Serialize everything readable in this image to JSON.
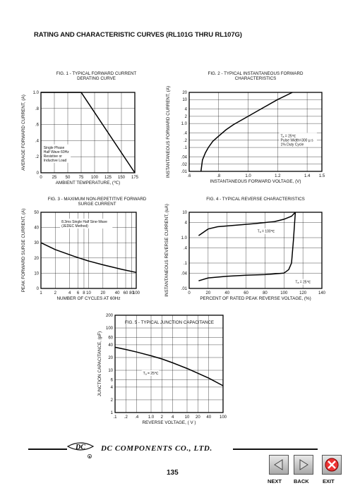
{
  "page_title": "RATING AND CHARACTERISTIC CURVES (RL101G THRU RL107G)",
  "company": "DC COMPONENTS CO.,  LTD.",
  "logo_text": "DC",
  "page_number": "135",
  "nav": {
    "next": "NEXT",
    "back": "BACK",
    "exit": "EXIT"
  },
  "chart_data": [
    {
      "id": "fig1",
      "type": "line",
      "title": [
        "FIG. 1 - TYPICAL FORWARD CURRENT",
        "DERATING CURVE"
      ],
      "xlabel": "AMBIENT TEMPERATURE, (℃)",
      "ylabel": "AVERAGE FORWARD  CURRENT, (A)",
      "xlim": [
        0,
        175
      ],
      "ylim": [
        0,
        1.0
      ],
      "xticks": [
        0,
        25,
        50,
        75,
        100,
        125,
        150,
        175
      ],
      "xtick_labels": [
        "0",
        "25",
        "50",
        "75",
        "100",
        "125",
        "150",
        "175"
      ],
      "yticks": [
        0,
        0.2,
        0.4,
        0.6,
        0.8,
        1.0
      ],
      "ytick_labels": [
        "0",
        ".2",
        ".4",
        ".6",
        ".8",
        "1.0"
      ],
      "grid": true,
      "series": [
        {
          "x": [
            0,
            75,
            175
          ],
          "y": [
            1.0,
            1.0,
            0
          ]
        }
      ],
      "annotations": [
        {
          "lines": [
            "Single Phase",
            "Half Wave 60Hz",
            "Resistive or",
            "Inductive Load"
          ],
          "x": 5,
          "y": 0.3
        }
      ]
    },
    {
      "id": "fig2",
      "type": "line",
      "title": [
        "FIG. 2 - TYPICAL INSTANTANEOUS FORWARD",
        "CHARACTERISTICS"
      ],
      "xlabel": "INSTANTANEOUS FORWARD VOLTAGE, (V)",
      "ylabel": "INSTANTANEOUS FORWARD CURRENT, (A)",
      "xlim": [
        0.6,
        1.5
      ],
      "ylim": [
        0.01,
        20
      ],
      "yscale": "log",
      "xticks": [
        0.6,
        0.8,
        1.0,
        1.2,
        1.4,
        1.5
      ],
      "xtick_labels": [
        ".6",
        ".8",
        "1.0",
        "1.2",
        "1.4",
        "1.5"
      ],
      "yticks": [
        0.01,
        0.02,
        0.04,
        0.1,
        0.2,
        0.4,
        1.0,
        2,
        4,
        10,
        20
      ],
      "ytick_labels": [
        ".01",
        ".02",
        ".04",
        ".1",
        ".2",
        ".4",
        "1.0",
        "2",
        "4",
        "10",
        "20"
      ],
      "grid": true,
      "series": [
        {
          "x": [
            0.68,
            0.69,
            0.71,
            0.73,
            0.76,
            0.8,
            0.85,
            0.9,
            1.0,
            1.1,
            1.2,
            1.3
          ],
          "y": [
            0.01,
            0.03,
            0.06,
            0.1,
            0.18,
            0.3,
            0.55,
            0.9,
            2.0,
            4.5,
            10,
            20
          ]
        }
      ],
      "annotations": [
        {
          "lines": [
            "Tₐ = 25℃",
            "Pulse Width=300 µ s",
            "1% Duty Cycle"
          ],
          "x": 1.22,
          "y": 0.27
        }
      ]
    },
    {
      "id": "fig3",
      "type": "line",
      "title": [
        "FIG. 3 - MAXIMUM NON-REPETITIVE FORWARD",
        "SURGE CURRENT"
      ],
      "xlabel": "NUMBER OF CYCLES AT 60Hz",
      "ylabel": "PEAK FORWARD SURGE CURRENT, (A)",
      "xlim": [
        1,
        100
      ],
      "ylim": [
        0,
        50
      ],
      "xscale": "log",
      "xticks": [
        1,
        2,
        4,
        6,
        8,
        10,
        20,
        40,
        60,
        80,
        100
      ],
      "xtick_labels": [
        "1",
        "2",
        "4",
        "6",
        "8",
        "10",
        "20",
        "40",
        "60",
        "80",
        "100"
      ],
      "yticks": [
        0,
        10,
        20,
        30,
        40,
        50
      ],
      "ytick_labels": [
        "0",
        "10",
        "20",
        "30",
        "40",
        "50"
      ],
      "grid": true,
      "series": [
        {
          "x": [
            1,
            2,
            5,
            10,
            20,
            50,
            100
          ],
          "y": [
            30,
            25.5,
            21,
            18,
            15.5,
            12.5,
            10.5
          ]
        }
      ],
      "annotations": [
        {
          "lines": [
            "8.3ms Single Half Sine-Wave",
            "(JEDEC Method)"
          ],
          "x": 2.7,
          "y": 43
        }
      ]
    },
    {
      "id": "fig4",
      "type": "line",
      "title": [
        "FIG. 4 - TYPICAL REVERSE CHARACTERISTICS"
      ],
      "xlabel": "PERCENT OF RATED PEAK REVERSE VOLTAGE, (%)",
      "ylabel": "INSTANTANEOUS REVERSE CURRENT, (uA)",
      "xlim": [
        0,
        140
      ],
      "ylim": [
        0.01,
        10
      ],
      "yscale": "log",
      "xticks": [
        0,
        20,
        40,
        60,
        80,
        100,
        120,
        140
      ],
      "xtick_labels": [
        "0",
        "20",
        "40",
        "60",
        "80",
        "100",
        "120",
        "140"
      ],
      "yticks": [
        0.01,
        0.04,
        0.1,
        0.4,
        1.0,
        4,
        10
      ],
      "ytick_labels": [
        ".01",
        ".04",
        ".1",
        ".4",
        "1.0",
        "4",
        "10"
      ],
      "grid": true,
      "series": [
        {
          "name": "Tₐ = 100℃",
          "x": [
            10,
            20,
            30,
            50,
            70,
            90,
            100,
            108,
            112
          ],
          "y": [
            1.2,
            2.2,
            2.7,
            3.1,
            3.6,
            4.3,
            5.3,
            7.0,
            10
          ]
        },
        {
          "name": "Tₐ = 25℃",
          "x": [
            10,
            20,
            40,
            60,
            80,
            100,
            105,
            108,
            110,
            112
          ],
          "y": [
            0.02,
            0.026,
            0.03,
            0.033,
            0.035,
            0.04,
            0.055,
            0.1,
            0.8,
            10
          ]
        }
      ],
      "annotations": [
        {
          "text": "Tₐ = 100℃",
          "x": 72,
          "y": 1.6
        },
        {
          "text": "Tₐ = 25℃",
          "x": 112,
          "y": 0.016
        }
      ]
    },
    {
      "id": "fig5",
      "type": "line",
      "title": [
        "FIG. 5 - TYPICAL JUNCTION CAPACITANCE"
      ],
      "xlabel": "REVERSE VOLTAGE, ( V )",
      "ylabel": "JUNCTION CAPACITANCE, (pF)",
      "xlim": [
        0.1,
        100
      ],
      "ylim": [
        1,
        200
      ],
      "xscale": "log",
      "yscale": "log",
      "xticks": [
        0.1,
        0.2,
        0.4,
        1.0,
        2,
        4,
        10,
        20,
        40,
        100
      ],
      "xtick_labels": [
        ".1",
        ".2",
        ".4",
        "1.0",
        "2",
        "4",
        "10",
        "20",
        "40",
        "100"
      ],
      "yticks": [
        1,
        2,
        4,
        6,
        10,
        20,
        40,
        60,
        100,
        200
      ],
      "ytick_labels": [
        "1",
        "2",
        "4",
        "6",
        "10",
        "20",
        "40",
        "60",
        "100",
        "200"
      ],
      "grid": true,
      "series": [
        {
          "x": [
            0.1,
            0.2,
            0.4,
            1.0,
            2,
            4,
            10,
            20,
            40,
            100
          ],
          "y": [
            35,
            31,
            27,
            22,
            18.5,
            15,
            11,
            8.5,
            6.5,
            4.3
          ]
        }
      ],
      "annotations": [
        {
          "text": "Tₐ = 25℃",
          "x": 0.6,
          "y": 8
        }
      ]
    }
  ]
}
